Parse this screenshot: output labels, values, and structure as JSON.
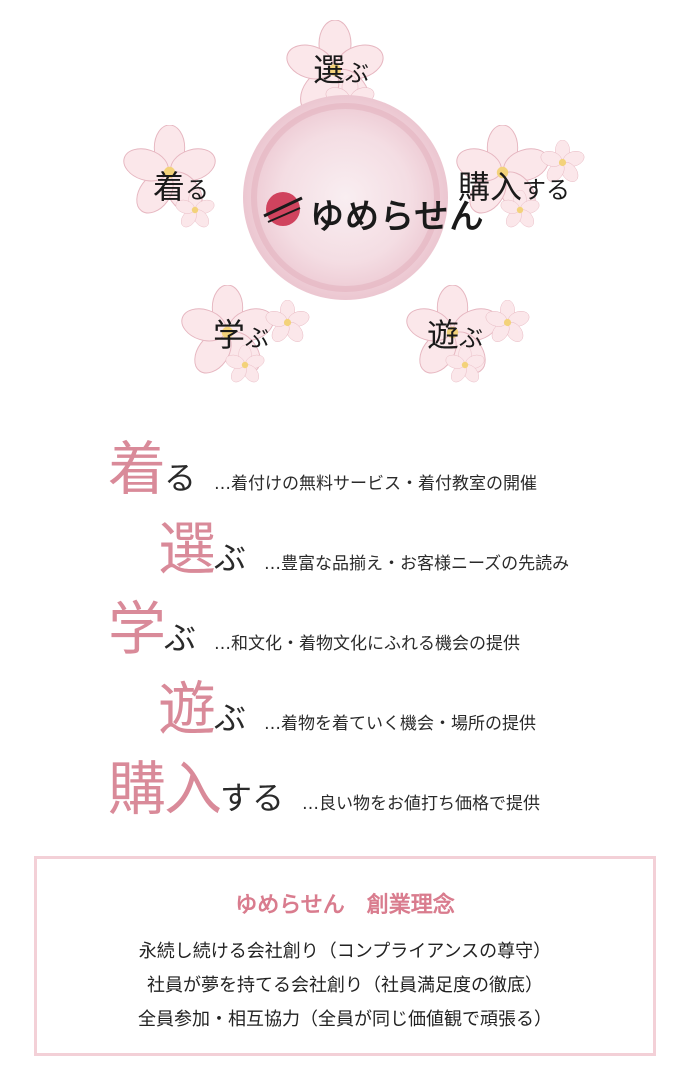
{
  "diagram": {
    "labels": {
      "top": {
        "kanji": "選",
        "kana": "ぶ"
      },
      "left": {
        "kanji": "着",
        "kana": "る"
      },
      "right": {
        "kanji": "購入",
        "kana": "する"
      },
      "bottom_left": {
        "kanji": "学",
        "kana": "ぶ"
      },
      "bottom_right": {
        "kanji": "遊",
        "kana": "ぶ"
      }
    },
    "logo_text": "ゆめらせん",
    "colors": {
      "accent": "#d98a99",
      "petal": "#fbe7ea",
      "ring": "#ecc7d1"
    }
  },
  "items": [
    {
      "kanji": "着",
      "kana": "る",
      "desc": "…着付けの無料サービス・着付教室の開催"
    },
    {
      "kanji": "選",
      "kana": "ぶ",
      "desc": "…豊富な品揃え・お客様ニーズの先読み"
    },
    {
      "kanji": "学",
      "kana": "ぶ",
      "desc": "…和文化・着物文化にふれる機会の提供"
    },
    {
      "kanji": "遊",
      "kana": "ぶ",
      "desc": "…着物を着ていく機会・場所の提供"
    },
    {
      "kanji": "購入",
      "kana": "する",
      "desc": "…良い物をお値打ち価格で提供"
    }
  ],
  "philosophy": {
    "title": "ゆめらせん　創業理念",
    "lines": [
      "永続し続ける会社創り（コンプライアンスの尊守）",
      "社員が夢を持てる会社創り（社員満足度の徹底）",
      "全員参加・相互協力（全員が同じ価値観で頑張る）"
    ],
    "border_color": "#f3d0d7",
    "title_color": "#d97c8e"
  }
}
